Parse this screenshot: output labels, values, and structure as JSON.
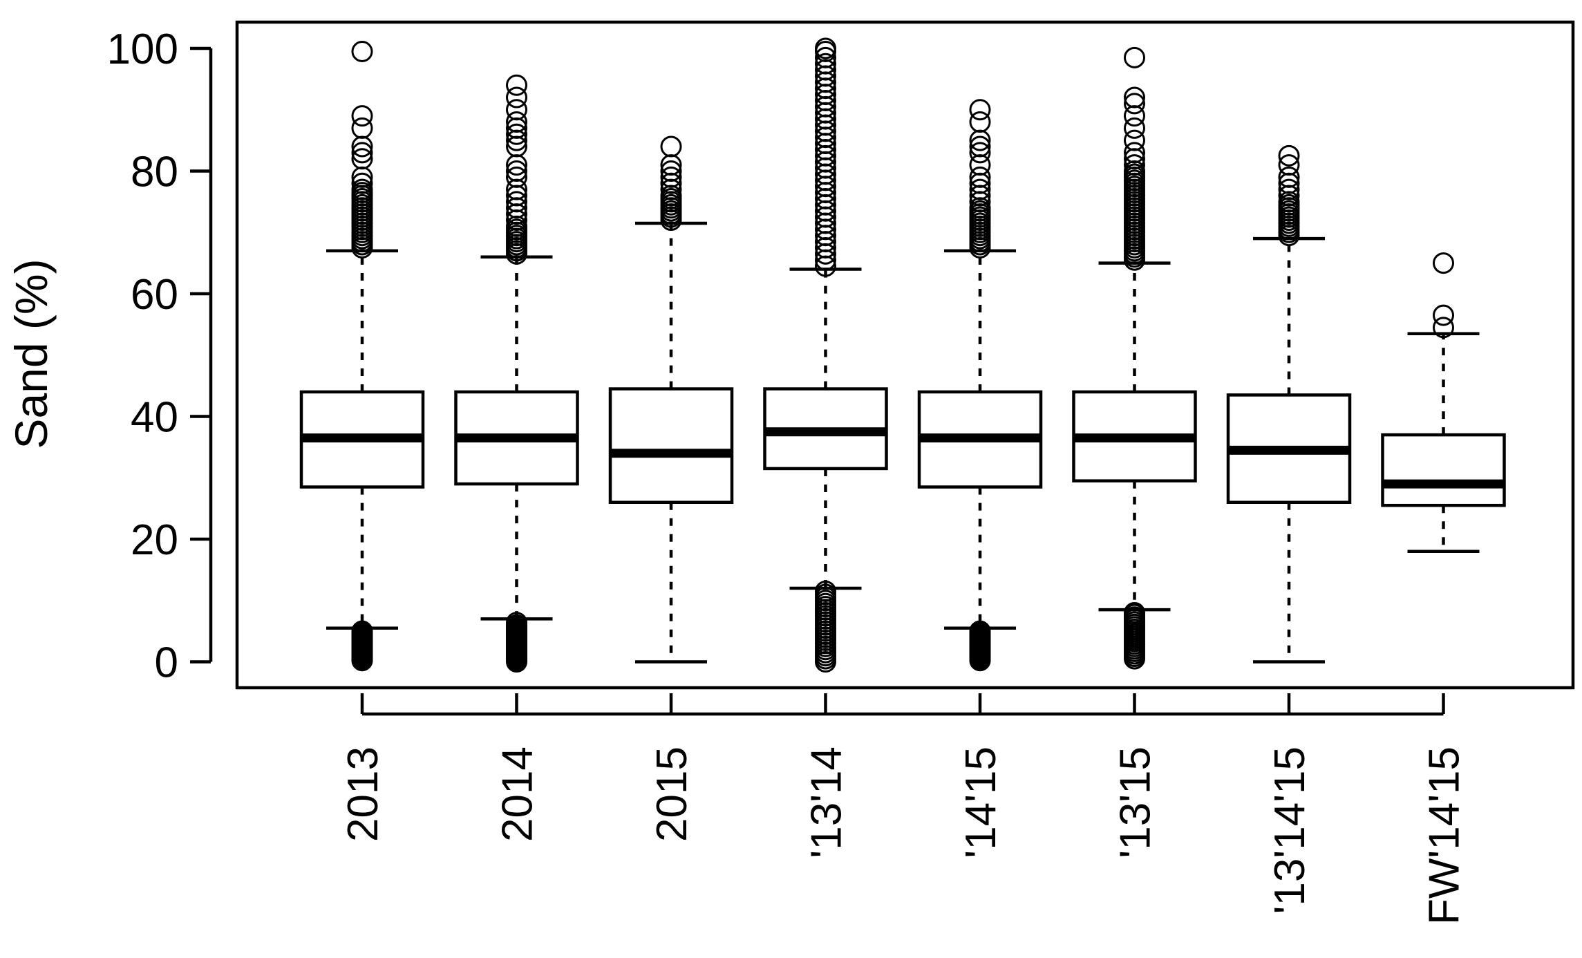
{
  "chart_data": {
    "type": "box",
    "title": "",
    "xlabel": "",
    "ylabel": "Sand (%)",
    "ylim": [
      -4,
      105
    ],
    "yticks": [
      0,
      20,
      40,
      60,
      80,
      100
    ],
    "grid": false,
    "legend": "none",
    "categories": [
      "2013",
      "2014",
      "2015",
      "'13'14",
      "'14'15",
      "'13'15",
      "'13'14'15",
      "FW'14'15"
    ],
    "boxes": [
      {
        "label": "2013",
        "min": 5.5,
        "q1": 28.5,
        "median": 36.5,
        "q3": 44.0,
        "max": 67.0,
        "outliers_high": [
          67.5,
          68.0,
          68.5,
          69.0,
          69.5,
          70.0,
          70.5,
          71.0,
          71.5,
          72.0,
          72.5,
          73.0,
          73.5,
          74.0,
          74.5,
          75.0,
          75.5,
          76.0,
          76.5,
          77.0,
          78.0,
          79.0,
          82.0,
          83.0,
          84.0,
          87.0,
          89.0,
          99.5
        ],
        "outliers_low": [
          0.2,
          0.5,
          0.8,
          1.1,
          1.4,
          1.7,
          2.0,
          2.3,
          2.6,
          2.9,
          3.2,
          3.5,
          3.8,
          4.1,
          4.4,
          4.7,
          5.0
        ]
      },
      {
        "label": "2014",
        "min": 7.0,
        "q1": 29.0,
        "median": 36.5,
        "q3": 44.0,
        "max": 66.0,
        "outliers_high": [
          66.5,
          67.0,
          67.5,
          68.0,
          68.5,
          69.0,
          69.5,
          70.0,
          70.5,
          71.0,
          72.0,
          73.0,
          74.0,
          75.0,
          76.0,
          77.0,
          79.0,
          80.0,
          81.0,
          84.0,
          85.0,
          86.0,
          87.0,
          88.0,
          90.0,
          92.0,
          94.0
        ],
        "outliers_low": [
          0.0,
          0.3,
          0.6,
          0.9,
          1.2,
          1.5,
          1.8,
          2.1,
          2.4,
          2.7,
          3.0,
          3.3,
          3.6,
          3.9,
          4.2,
          4.5,
          4.8,
          5.1,
          5.4,
          5.7,
          6.0,
          6.4
        ]
      },
      {
        "label": "2015",
        "min": 0.0,
        "q1": 26.0,
        "median": 34.0,
        "q3": 44.5,
        "max": 71.5,
        "outliers_high": [
          72.0,
          72.5,
          73.0,
          73.5,
          74.0,
          74.5,
          75.0,
          75.5,
          76.0,
          77.0,
          78.0,
          79.0,
          80.0,
          81.0,
          84.0
        ],
        "outliers_low": []
      },
      {
        "label": "'13'14",
        "min": 12.0,
        "q1": 31.5,
        "median": 37.5,
        "q3": 44.5,
        "max": 64.0,
        "outliers_high": [
          64.5,
          65.5,
          66.5,
          67.5,
          68.5,
          69.5,
          70.5,
          71.5,
          72.5,
          73.5,
          74.5,
          75.5,
          76.5,
          77.5,
          78.5,
          79.5,
          80.5,
          81.5,
          82.5,
          83.5,
          84.5,
          85.5,
          86.5,
          87.5,
          88.5,
          89.5,
          90.5,
          91.5,
          92.5,
          93.5,
          94.5,
          95.5,
          96.5,
          97.5,
          98.5,
          99.5,
          100.0
        ],
        "outliers_low": [
          0.0,
          0.5,
          1.0,
          1.5,
          2.0,
          2.5,
          3.0,
          3.5,
          4.0,
          4.5,
          5.0,
          5.5,
          6.0,
          6.5,
          7.0,
          7.5,
          8.0,
          8.5,
          9.0,
          9.5,
          10.0,
          10.5,
          11.0,
          11.5
        ]
      },
      {
        "label": "'14'15",
        "min": 5.5,
        "q1": 28.5,
        "median": 36.5,
        "q3": 44.0,
        "max": 67.0,
        "outliers_high": [
          67.5,
          68.0,
          68.5,
          69.0,
          69.5,
          70.0,
          70.5,
          71.0,
          71.5,
          72.0,
          72.5,
          73.0,
          73.5,
          74.0,
          75.0,
          76.0,
          77.0,
          78.0,
          79.0,
          81.0,
          83.0,
          84.0,
          85.0,
          88.0,
          90.0
        ],
        "outliers_low": [
          0.2,
          0.5,
          0.8,
          1.1,
          1.4,
          1.7,
          2.0,
          2.3,
          2.6,
          2.9,
          3.2,
          3.5,
          3.8,
          4.1,
          4.4,
          4.7,
          5.0
        ]
      },
      {
        "label": "'13'15",
        "min": 8.5,
        "q1": 29.5,
        "median": 36.5,
        "q3": 44.0,
        "max": 65.0,
        "outliers_high": [
          65.5,
          66.0,
          66.5,
          67.0,
          67.5,
          68.0,
          68.5,
          69.0,
          69.5,
          70.0,
          70.5,
          71.0,
          71.5,
          72.0,
          72.5,
          73.0,
          73.5,
          74.0,
          74.5,
          75.0,
          75.5,
          76.0,
          76.5,
          77.0,
          77.5,
          78.0,
          78.5,
          79.0,
          79.5,
          80.0,
          81.0,
          82.0,
          83.0,
          85.0,
          87.0,
          89.0,
          91.0,
          92.0,
          98.5
        ],
        "outliers_low": [
          0.5,
          0.9,
          1.3,
          1.7,
          2.1,
          2.5,
          2.9,
          3.3,
          3.7,
          4.1,
          4.5,
          4.9,
          5.3,
          5.7,
          6.1,
          6.5,
          6.9,
          7.3,
          7.7,
          8.0
        ]
      },
      {
        "label": "'13'14'15",
        "min": 0.0,
        "q1": 26.0,
        "median": 34.5,
        "q3": 43.5,
        "max": 69.0,
        "outliers_high": [
          69.5,
          70.0,
          70.5,
          71.0,
          71.5,
          72.0,
          72.5,
          73.0,
          73.5,
          74.0,
          74.5,
          75.0,
          76.0,
          77.0,
          78.0,
          79.0,
          81.0,
          82.5
        ],
        "outliers_low": []
      },
      {
        "label": "FW'14'15",
        "min": 18.0,
        "q1": 25.5,
        "median": 29.0,
        "q3": 37.0,
        "max": 53.5,
        "outliers_high": [
          54.5,
          56.5,
          65.0
        ],
        "outliers_low": []
      }
    ]
  }
}
